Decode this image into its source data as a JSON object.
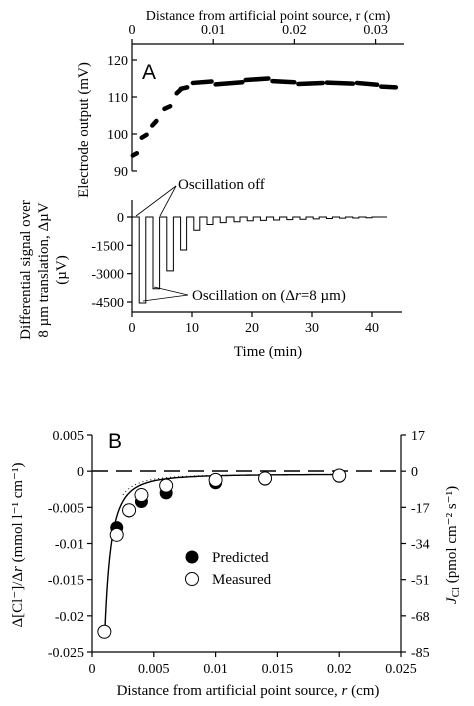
{
  "chart_data": [
    {
      "panel": "A",
      "type": "scatter",
      "title": "Distance from artificial point source, r (cm)",
      "ylabel": "Electrode output (mV)",
      "xlim": [
        0,
        0.0335
      ],
      "ylim": [
        90,
        120
      ],
      "xticks": [
        "0",
        "0.01",
        "0.02",
        "0.03"
      ],
      "xtick_values": [
        0,
        0.01,
        0.02,
        0.03
      ],
      "yticks": [
        "90",
        "100",
        "110",
        "120"
      ],
      "ytick_values": [
        90,
        100,
        110,
        120
      ],
      "segments": [
        {
          "x": [
            0.0001,
            0.0006
          ],
          "y": [
            94.2,
            94.8
          ]
        },
        {
          "x": [
            0.0012,
            0.0018
          ],
          "y": [
            99.0,
            99.8
          ]
        },
        {
          "x": [
            0.0025,
            0.003
          ],
          "y": [
            102.3,
            103.5
          ]
        },
        {
          "x": [
            0.004,
            0.0047
          ],
          "y": [
            106.8,
            107.5
          ]
        },
        {
          "x": [
            0.0055,
            0.006
          ],
          "y": [
            111.0,
            112.0
          ]
        },
        {
          "x": [
            0.006,
            0.0068
          ],
          "y": [
            112.2,
            112.6
          ]
        },
        {
          "x": [
            0.0075,
            0.0098
          ],
          "y": [
            113.8,
            114.2
          ]
        },
        {
          "x": [
            0.0103,
            0.0136
          ],
          "y": [
            113.4,
            114.0
          ]
        },
        {
          "x": [
            0.014,
            0.0168
          ],
          "y": [
            114.6,
            115.0
          ]
        },
        {
          "x": [
            0.0173,
            0.02
          ],
          "y": [
            114.3,
            114.0
          ]
        },
        {
          "x": [
            0.0205,
            0.0235
          ],
          "y": [
            113.5,
            113.8
          ]
        },
        {
          "x": [
            0.024,
            0.0272
          ],
          "y": [
            113.9,
            113.6
          ]
        },
        {
          "x": [
            0.0277,
            0.0302
          ],
          "y": [
            113.8,
            113.3
          ]
        },
        {
          "x": [
            0.0307,
            0.0325
          ],
          "y": [
            112.8,
            112.6
          ]
        }
      ]
    },
    {
      "panel": "A",
      "type": "line",
      "xlabel": "Time (min)",
      "ylabel": "Differential signal over 8 µm translation, ΔµV (µV)",
      "xlim": [
        0,
        45
      ],
      "ylim": [
        -4800,
        400
      ],
      "xticks": [
        "0",
        "10",
        "20",
        "30",
        "40"
      ],
      "xtick_values": [
        0,
        10,
        20,
        30,
        40
      ],
      "yticks": [
        "0",
        "-1500",
        "-3000",
        "-4500"
      ],
      "ytick_values": [
        0,
        -1500,
        -3000,
        -4500
      ],
      "pulses": [
        {
          "start": 1.2,
          "end": 2.3,
          "min": -4550
        },
        {
          "start": 3.5,
          "end": 4.6,
          "min": -3800
        },
        {
          "start": 5.8,
          "end": 6.9,
          "min": -2850
        },
        {
          "start": 8.1,
          "end": 9.1,
          "min": -1750
        },
        {
          "start": 10.3,
          "end": 11.3,
          "min": -700
        },
        {
          "start": 12.5,
          "end": 13.5,
          "min": -400
        },
        {
          "start": 14.7,
          "end": 15.7,
          "min": -300
        },
        {
          "start": 17.0,
          "end": 18.0,
          "min": -250
        },
        {
          "start": 19.2,
          "end": 20.2,
          "min": -200
        },
        {
          "start": 21.4,
          "end": 22.4,
          "min": -180
        },
        {
          "start": 23.6,
          "end": 24.6,
          "min": -160
        },
        {
          "start": 25.8,
          "end": 26.8,
          "min": -140
        },
        {
          "start": 28.0,
          "end": 29.0,
          "min": -120
        },
        {
          "start": 30.2,
          "end": 31.2,
          "min": -100
        },
        {
          "start": 32.4,
          "end": 33.4,
          "min": -80
        },
        {
          "start": 34.6,
          "end": 35.6,
          "min": -60
        },
        {
          "start": 36.8,
          "end": 37.8,
          "min": -50
        },
        {
          "start": 39.0,
          "end": 40.0,
          "min": -40
        }
      ],
      "x_end": 42.5,
      "annotations": [
        "Oscillation off",
        "Oscillation on (Δr=8 µm)"
      ]
    },
    {
      "panel": "B",
      "type": "scatter",
      "xlabel": "Distance from artificial point source, r (cm)",
      "ylabel": "Δ[Cl⁻]/Δr (mmol l⁻¹ cm⁻¹)",
      "y2label": "J_Cl (pmol cm⁻² s⁻¹)",
      "xlim": [
        0,
        0.025
      ],
      "ylim": [
        -0.025,
        0.005
      ],
      "xticks": [
        "0",
        "0.005",
        "0.01",
        "0.015",
        "0.02",
        "0.025"
      ],
      "xtick_values": [
        0,
        0.005,
        0.01,
        0.015,
        0.02,
        0.025
      ],
      "yticks": [
        "0.005",
        "0",
        "-0.005",
        "-0.01",
        "-0.015",
        "-0.02",
        "-0.025"
      ],
      "ytick_values": [
        0.005,
        0,
        -0.005,
        -0.01,
        -0.015,
        -0.02,
        -0.025
      ],
      "y2ticks": [
        "17",
        "0",
        "-17",
        "-34",
        "-51",
        "-68",
        "-85"
      ],
      "series": [
        {
          "name": "Predicted",
          "marker": "filled-circle",
          "x": [
            0.002,
            0.003,
            0.004,
            0.006,
            0.01,
            0.014,
            0.02
          ],
          "y": [
            -0.0078,
            -0.0055,
            -0.0042,
            -0.003,
            -0.0016,
            -0.0011,
            -0.0007
          ]
        },
        {
          "name": "Measured",
          "marker": "open-circle",
          "x": [
            0.001,
            0.002,
            0.003,
            0.004,
            0.006,
            0.01,
            0.014,
            0.02
          ],
          "y": [
            -0.0222,
            -0.0088,
            -0.0054,
            -0.0033,
            -0.002,
            -0.0012,
            -0.001,
            -0.0006
          ]
        }
      ],
      "legend": {
        "placement": "center",
        "entries": [
          "Predicted",
          "Measured"
        ]
      }
    }
  ],
  "panel_labels": [
    "A",
    "B"
  ]
}
